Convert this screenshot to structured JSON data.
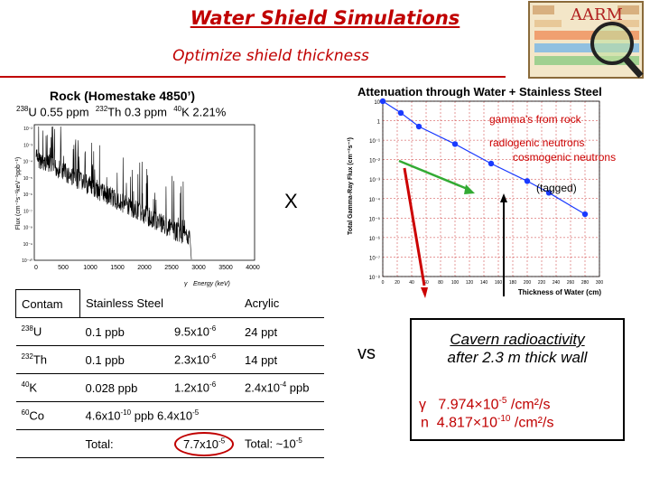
{
  "header": {
    "title": "Water Shield Simulations",
    "subtitle": "Optimize shield thickness",
    "logo_text": "AARM"
  },
  "rock": {
    "title": "Rock (Homestake 4850’)",
    "u_iso": "238",
    "u_sym": "U",
    "u_val": "0.55 ppm",
    "th_iso": "232",
    "th_sym": "Th",
    "th_val": "0.3 ppm",
    "k_iso": "40",
    "k_sym": "K",
    "k_val": "2.21%"
  },
  "spectrum": {
    "ylabel": "Flux (cm⁻²s⁻¹keV⁻¹ppb⁻¹)",
    "xlabel": "Energy (keV)",
    "xlabel_prefix": "γ",
    "x_ticks": [
      "0",
      "500",
      "1000",
      "1500",
      "2000",
      "2500",
      "3000",
      "3500",
      "4000"
    ],
    "y_ticks": [
      "10⁻²",
      "10⁻³",
      "10⁻⁴",
      "10⁻⁵",
      "10⁻⁶",
      "10⁻⁷",
      "10⁻⁸",
      "10⁻⁹",
      "10⁻¹⁰"
    ]
  },
  "x_mark": "X",
  "chart_data": {
    "type": "scatter",
    "title": "Attenuation through Water + Stainless Steel",
    "xlabel": "Thickness of Water (cm)",
    "ylabel": "Total Gamma-Ray Flux (cm⁻²s⁻¹)",
    "x_ticks": [
      "0",
      "20",
      "40",
      "60",
      "80",
      "100",
      "120",
      "140",
      "160",
      "180",
      "200",
      "220",
      "240",
      "260",
      "280",
      "300"
    ],
    "y_ticks": [
      "10",
      "1",
      "10⁻¹",
      "10⁻²",
      "10⁻³",
      "10⁻⁴",
      "10⁻⁵",
      "10⁻⁶",
      "10⁻⁷",
      "10⁻⁸"
    ],
    "xlim": [
      0,
      300
    ],
    "ylog_range": [
      -8,
      1
    ],
    "x": [
      0,
      25,
      50,
      100,
      150,
      200,
      230,
      280
    ],
    "y_log10": [
      1.0,
      0.4,
      -0.3,
      -1.2,
      -2.2,
      -3.1,
      -3.7,
      -4.8
    ],
    "legend": [
      "gamma's from rock",
      "radiogenic neutrons",
      "cosmogenic neutrons"
    ],
    "tagged_label": "(tagged)",
    "grid": true
  },
  "colors": {
    "red": "#cc0000",
    "green": "#33aa33",
    "blue": "#1a3aff",
    "title_red": "#c00000"
  },
  "vs": "vs",
  "cavern": {
    "title": "Cavern radioactivity",
    "subtitle": "after 2.3 m thick wall",
    "gamma_sym": "γ",
    "gamma_mant": "7.974×10",
    "gamma_exp": "-5",
    "gamma_unit": "/cm²/s",
    "n_sym": "n",
    "n_mant": "4.817×10",
    "n_exp": "-10",
    "n_unit": "/cm²/s"
  },
  "table": {
    "header": [
      "Contam",
      "Stainless Steel",
      "Acrylic"
    ],
    "rows": [
      {
        "iso": "238",
        "sym": "U",
        "ss_conc": "0.1 ppb",
        "ss_mant": "9.5x10",
        "ss_exp": "-6",
        "ac": "24 ppt",
        "ac_exp": ""
      },
      {
        "iso": "232",
        "sym": "Th",
        "ss_conc": "0.1 ppb",
        "ss_mant": "2.3x10",
        "ss_exp": "-6",
        "ac": "14 ppt",
        "ac_exp": ""
      },
      {
        "iso": "40",
        "sym": "K",
        "ss_conc": "0.028 ppb",
        "ss_mant": "1.2x10",
        "ss_exp": "-6",
        "ac": "2.4x10",
        "ac_exp": "-4",
        "ac_suffix": " ppb"
      },
      {
        "iso": "60",
        "sym": "Co",
        "ss_conc": "4.6x10",
        "ss_conc_exp": "-10",
        "ss_conc_unit": " ppb",
        "ss_mant": "6.4x10",
        "ss_exp": "-5"
      }
    ],
    "total_label": "Total:",
    "total_ss_mant": "7.7x10",
    "total_ss_exp": "-5",
    "total_ac_mant": "Total: ~10",
    "total_ac_exp": "-5"
  }
}
